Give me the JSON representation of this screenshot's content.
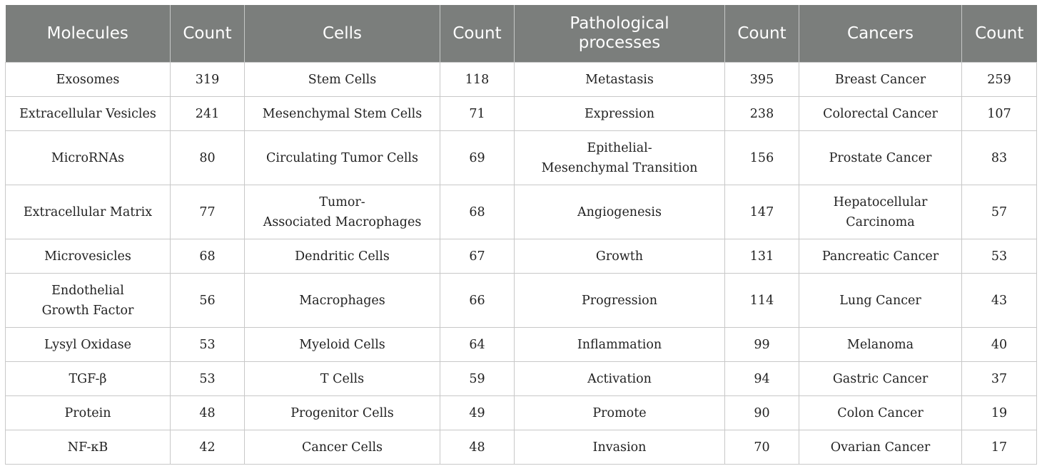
{
  "headers": [
    "Molecules",
    "Count",
    "Cells",
    "Count",
    "Pathological\nprocesses",
    "Count",
    "Cancers",
    "Count"
  ],
  "rows": [
    [
      "Exosomes",
      "319",
      "Stem Cells",
      "118",
      "Metastasis",
      "395",
      "Breast Cancer",
      "259"
    ],
    [
      "Extracellular Vesicles",
      "241",
      "Mesenchymal Stem Cells",
      "71",
      "Expression",
      "238",
      "Colorectal Cancer",
      "107"
    ],
    [
      "MicroRNAs",
      "80",
      "Circulating Tumor Cells",
      "69",
      "Epithelial-\nMesenchymal Transition",
      "156",
      "Prostate Cancer",
      "83"
    ],
    [
      "Extracellular Matrix",
      "77",
      "Tumor-\nAssociated Macrophages",
      "68",
      "Angiogenesis",
      "147",
      "Hepatocellular\nCarcinoma",
      "57"
    ],
    [
      "Microvesicles",
      "68",
      "Dendritic Cells",
      "67",
      "Growth",
      "131",
      "Pancreatic Cancer",
      "53"
    ],
    [
      "Endothelial\nGrowth Factor",
      "56",
      "Macrophages",
      "66",
      "Progression",
      "114",
      "Lung Cancer",
      "43"
    ],
    [
      "Lysyl Oxidase",
      "53",
      "Myeloid Cells",
      "64",
      "Inflammation",
      "99",
      "Melanoma",
      "40"
    ],
    [
      "TGF-β",
      "53",
      "T Cells",
      "59",
      "Activation",
      "94",
      "Gastric Cancer",
      "37"
    ],
    [
      "Protein",
      "48",
      "Progenitor Cells",
      "49",
      "Promote",
      "90",
      "Colon Cancer",
      "19"
    ],
    [
      "NF-κB",
      "42",
      "Cancer Cells",
      "48",
      "Invasion",
      "70",
      "Ovarian Cancer",
      "17"
    ]
  ],
  "colors": {
    "header_bg": "#7b7e7c",
    "header_text": "#ffffff",
    "border": "#c8c8c8"
  }
}
